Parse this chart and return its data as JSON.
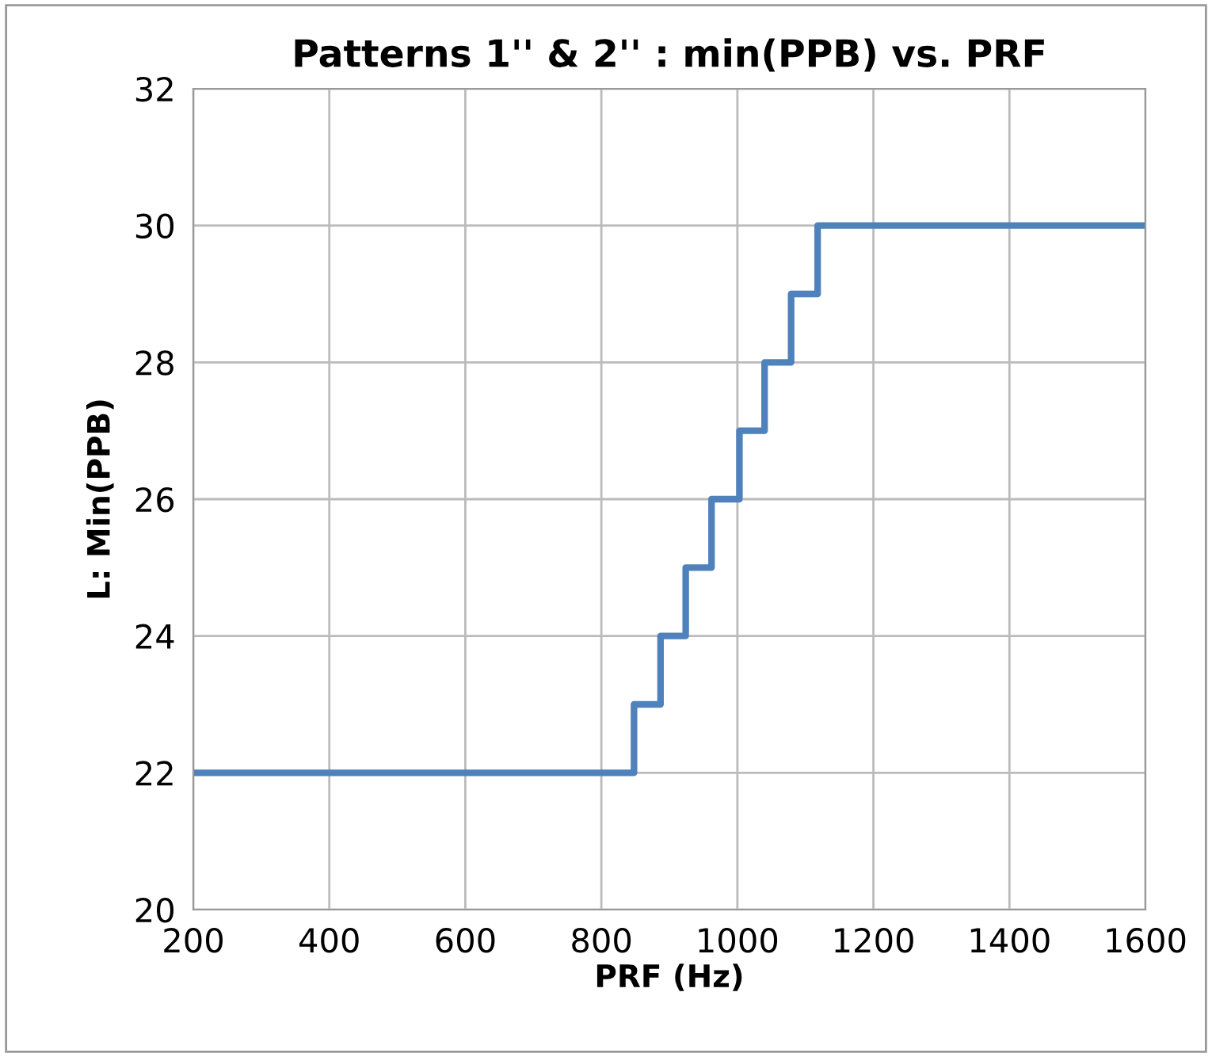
{
  "chart_data": {
    "type": "step",
    "title": "Patterns 1'' & 2'' : min(PPB) vs. PRF",
    "xlabel": "PRF (Hz)",
    "ylabel": "L: Min(PPB)",
    "series": [
      {
        "color": "#4f81bd",
        "x": [
          200,
          848,
          887,
          924,
          962,
          1003,
          1040,
          1079,
          1118,
          1600
        ],
        "values": [
          22,
          23,
          24,
          25,
          26,
          27,
          28,
          29,
          30,
          30
        ]
      }
    ],
    "xlim": [
      200,
      1600
    ],
    "xticks": [
      200,
      400,
      600,
      800,
      1000,
      1200,
      1400,
      1600
    ],
    "ylim": [
      20,
      32
    ],
    "yticks": [
      20,
      22,
      24,
      26,
      28,
      30,
      32
    ],
    "grid": true,
    "legend": false,
    "marker": "none",
    "line_style": "solid"
  }
}
